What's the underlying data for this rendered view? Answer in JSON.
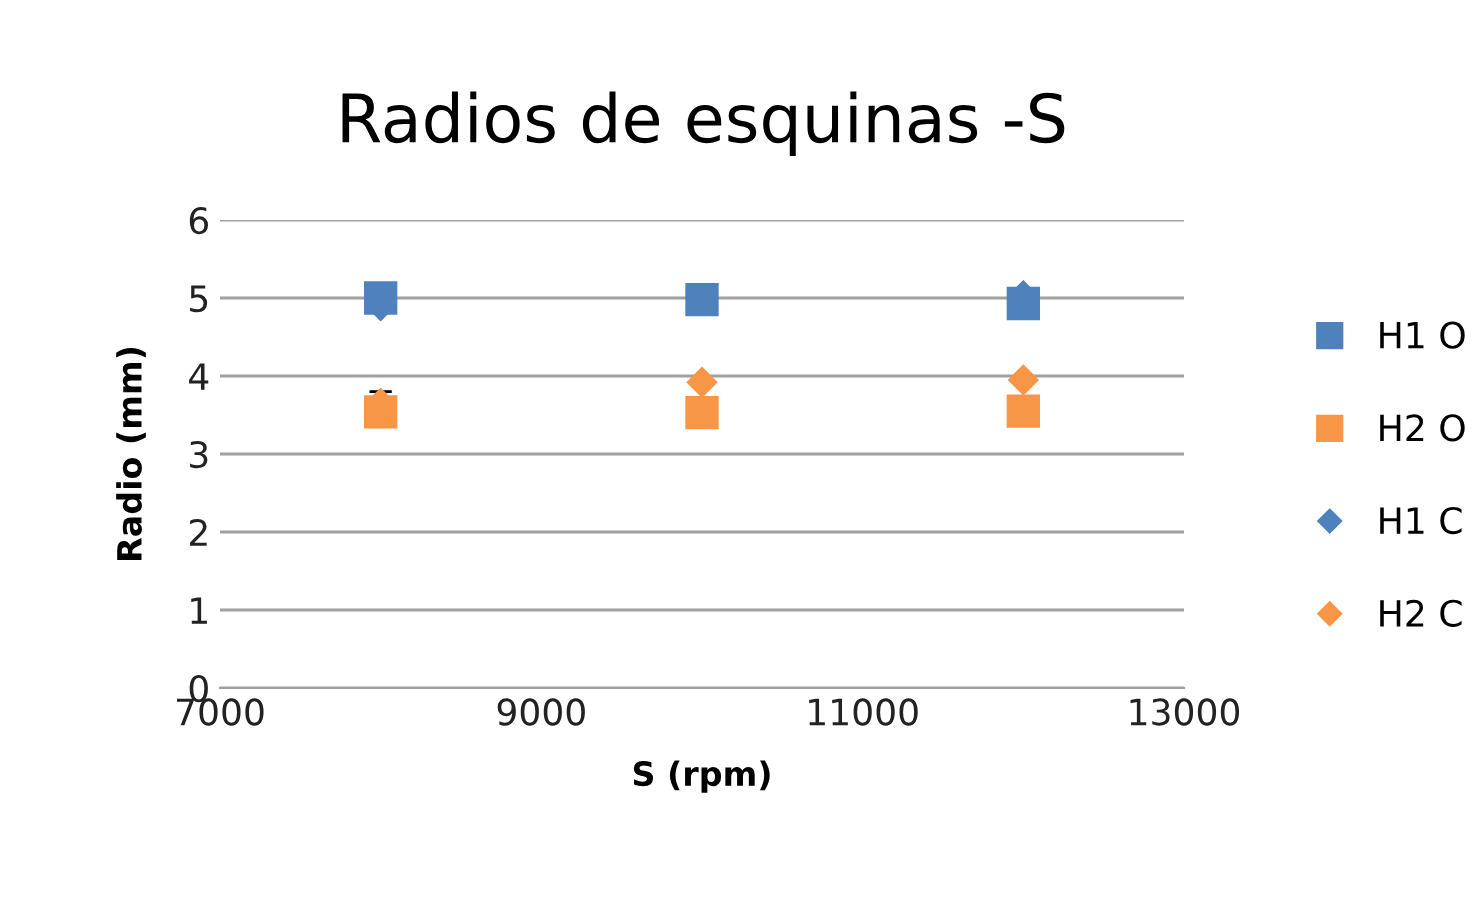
{
  "chart_data": {
    "type": "scatter",
    "title": "Radios de esquinas -S",
    "xlabel": "S (rpm)",
    "ylabel": "Radio (mm)",
    "x": [
      8000,
      10000,
      12000
    ],
    "series": [
      {
        "name": "H1 O",
        "color": "#4f81bd",
        "marker": "square",
        "values": [
          5.0,
          4.98,
          4.93
        ]
      },
      {
        "name": "H2 O",
        "color": "#f79646",
        "marker": "square",
        "values": [
          3.54,
          3.53,
          3.55
        ]
      },
      {
        "name": "H1 C",
        "color": "#4f81bd",
        "marker": "diamond",
        "values": [
          4.9,
          null,
          5.03
        ]
      },
      {
        "name": "H2 C",
        "color": "#f79646",
        "marker": "diamond",
        "values": [
          3.65,
          3.92,
          3.95
        ],
        "errors": [
          0.15,
          null,
          null
        ]
      }
    ],
    "xlim": [
      7000,
      13000
    ],
    "xticks": [
      7000,
      9000,
      11000,
      13000
    ],
    "ylim": [
      0,
      6
    ],
    "yticks": [
      0,
      1,
      2,
      3,
      4,
      5,
      6
    ],
    "grid": "y",
    "legend": "right"
  }
}
